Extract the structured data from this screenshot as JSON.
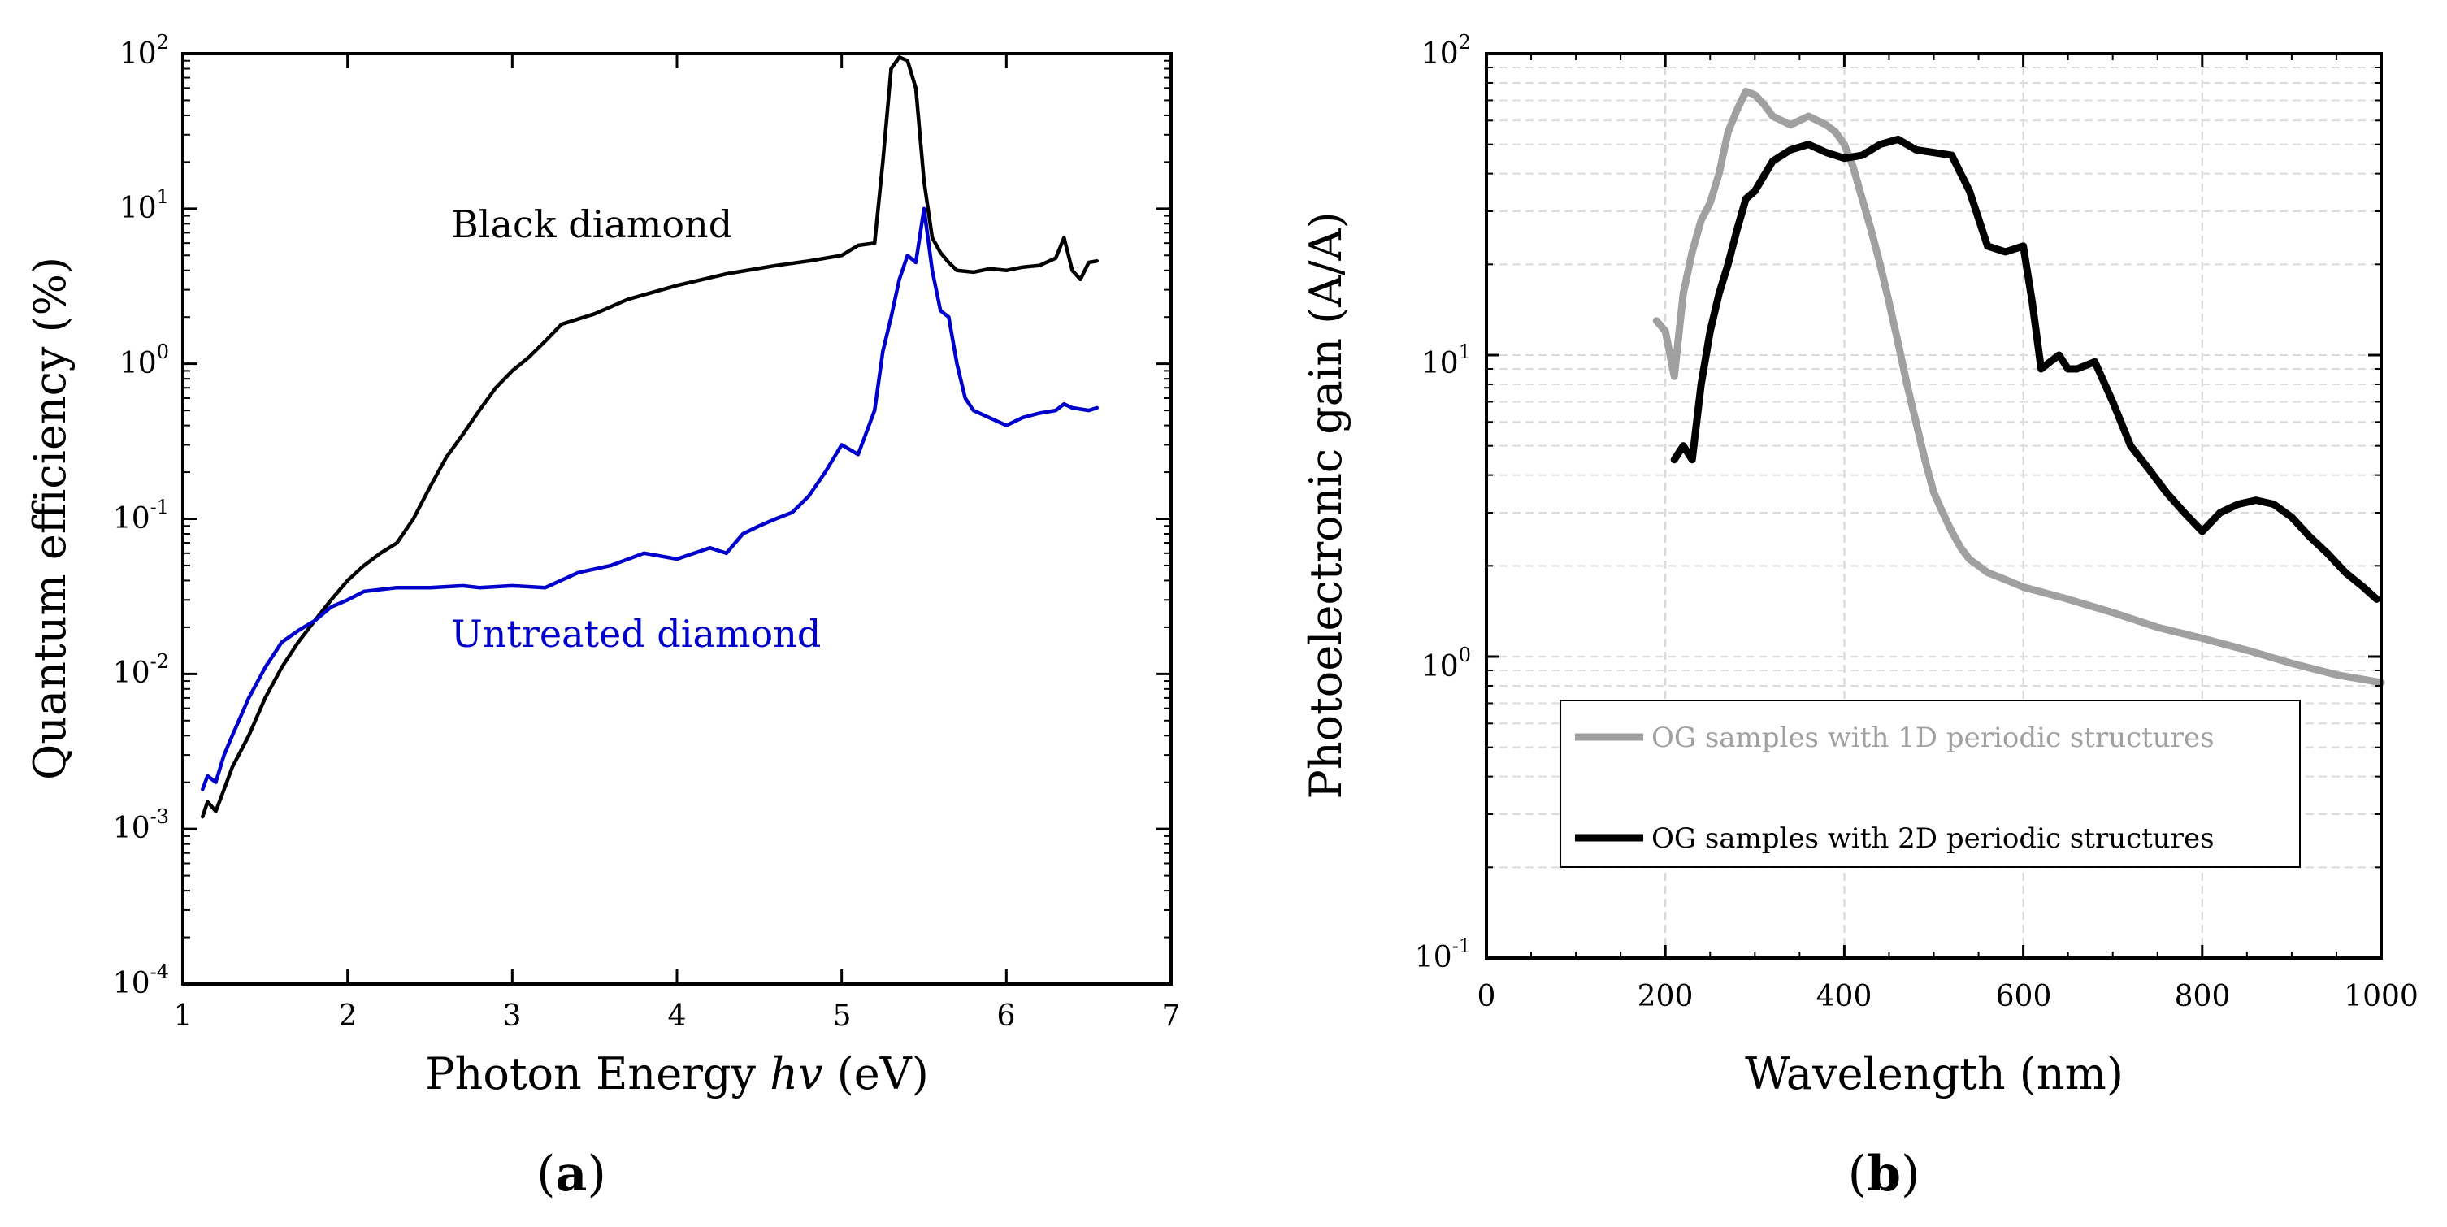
{
  "chart_data": [
    {
      "type": "line",
      "panel_label": "a",
      "xlabel": "Photon Energy",
      "xlabel_italic": "hv",
      "xlabel_unit": "(eV)",
      "ylabel": "Quantum efficiency (%)",
      "yscale": "log",
      "xlim": [
        1,
        7
      ],
      "ylim": [
        0.0001,
        100
      ],
      "xticks": [
        "1",
        "2",
        "3",
        "4",
        "5",
        "6",
        "7"
      ],
      "yticks": [
        {
          "base": "10",
          "exp": "2"
        },
        {
          "base": "10",
          "exp": "1"
        },
        {
          "base": "10",
          "exp": "0"
        },
        {
          "base": "10",
          "exp": "-1"
        },
        {
          "base": "10",
          "exp": "-2"
        },
        {
          "base": "10",
          "exp": "-3"
        },
        {
          "base": "10",
          "exp": "-4"
        }
      ],
      "series": [
        {
          "name": "Black diamond",
          "color": "#000000",
          "x": [
            1.12,
            1.15,
            1.2,
            1.25,
            1.3,
            1.4,
            1.5,
            1.6,
            1.7,
            1.8,
            1.9,
            2.0,
            2.1,
            2.2,
            2.3,
            2.4,
            2.5,
            2.6,
            2.7,
            2.8,
            2.9,
            3.0,
            3.1,
            3.2,
            3.3,
            3.5,
            3.7,
            4.0,
            4.3,
            4.6,
            4.8,
            5.0,
            5.1,
            5.2,
            5.25,
            5.3,
            5.35,
            5.4,
            5.45,
            5.5,
            5.55,
            5.6,
            5.65,
            5.7,
            5.8,
            5.9,
            6.0,
            6.1,
            6.2,
            6.3,
            6.35,
            6.4,
            6.45,
            6.5,
            6.55
          ],
          "y": [
            0.0012,
            0.0015,
            0.0013,
            0.0018,
            0.0025,
            0.004,
            0.007,
            0.011,
            0.016,
            0.022,
            0.03,
            0.04,
            0.05,
            0.06,
            0.07,
            0.1,
            0.16,
            0.25,
            0.35,
            0.5,
            0.7,
            0.9,
            1.1,
            1.4,
            1.8,
            2.1,
            2.6,
            3.2,
            3.8,
            4.3,
            4.6,
            5.0,
            5.8,
            6.0,
            20,
            80,
            95,
            90,
            60,
            15,
            6.5,
            5.2,
            4.5,
            4.0,
            3.9,
            4.1,
            4.0,
            4.2,
            4.3,
            4.8,
            6.5,
            4.0,
            3.5,
            4.5,
            4.6
          ]
        },
        {
          "name": "Untreated diamond",
          "color": "#0000cc",
          "x": [
            1.12,
            1.15,
            1.2,
            1.25,
            1.3,
            1.4,
            1.5,
            1.6,
            1.7,
            1.8,
            1.9,
            2.0,
            2.1,
            2.2,
            2.3,
            2.5,
            2.7,
            2.8,
            3.0,
            3.2,
            3.4,
            3.6,
            3.8,
            4.0,
            4.2,
            4.3,
            4.4,
            4.5,
            4.6,
            4.7,
            4.8,
            4.9,
            5.0,
            5.1,
            5.2,
            5.25,
            5.3,
            5.35,
            5.4,
            5.45,
            5.5,
            5.55,
            5.6,
            5.65,
            5.7,
            5.75,
            5.8,
            6.0,
            6.1,
            6.2,
            6.3,
            6.35,
            6.4,
            6.5,
            6.55
          ],
          "y": [
            0.0018,
            0.0022,
            0.002,
            0.003,
            0.004,
            0.007,
            0.011,
            0.016,
            0.019,
            0.022,
            0.027,
            0.03,
            0.034,
            0.035,
            0.036,
            0.036,
            0.037,
            0.036,
            0.037,
            0.036,
            0.045,
            0.05,
            0.06,
            0.055,
            0.065,
            0.06,
            0.08,
            0.09,
            0.1,
            0.11,
            0.14,
            0.2,
            0.3,
            0.26,
            0.5,
            1.2,
            2.0,
            3.5,
            5.0,
            4.5,
            10,
            4.0,
            2.2,
            2.0,
            1.0,
            0.6,
            0.5,
            0.4,
            0.45,
            0.48,
            0.5,
            0.55,
            0.52,
            0.5,
            0.52
          ]
        }
      ],
      "annotations": [
        "Black diamond",
        "Untreated diamond"
      ]
    },
    {
      "type": "line",
      "panel_label": "b",
      "xlabel": "Wavelength (nm)",
      "ylabel": "Photoelectronic gain (A/A)",
      "yscale": "log",
      "xlim": [
        0,
        1000
      ],
      "ylim": [
        0.1,
        100
      ],
      "xticks": [
        "0",
        "200",
        "400",
        "600",
        "800",
        "1000"
      ],
      "yticks": [
        {
          "base": "10",
          "exp": "2"
        },
        {
          "base": "10",
          "exp": "1"
        },
        {
          "base": "10",
          "exp": "0"
        },
        {
          "base": "10",
          "exp": "-1"
        }
      ],
      "grid": true,
      "legend": "bottom-left",
      "series": [
        {
          "name": "OG samples with 1D periodic structures",
          "color": "#a0a0a0",
          "x": [
            190,
            200,
            210,
            220,
            230,
            240,
            250,
            260,
            270,
            280,
            290,
            300,
            310,
            320,
            330,
            340,
            350,
            360,
            370,
            380,
            390,
            400,
            410,
            420,
            430,
            440,
            450,
            460,
            470,
            480,
            490,
            500,
            510,
            520,
            530,
            540,
            550,
            560,
            580,
            600,
            650,
            700,
            750,
            800,
            850,
            900,
            950,
            1000
          ],
          "y": [
            13,
            12,
            8.5,
            16,
            22,
            28,
            32,
            40,
            55,
            65,
            75,
            73,
            68,
            62,
            60,
            58,
            60,
            62,
            60,
            58,
            55,
            50,
            42,
            33,
            26,
            20,
            15,
            11,
            8,
            6,
            4.5,
            3.5,
            3.0,
            2.6,
            2.3,
            2.1,
            2.0,
            1.9,
            1.8,
            1.7,
            1.55,
            1.4,
            1.25,
            1.15,
            1.05,
            0.95,
            0.87,
            0.82
          ]
        },
        {
          "name": "OG samples with 2D periodic structures",
          "color": "#000000",
          "x": [
            210,
            220,
            230,
            240,
            250,
            260,
            270,
            280,
            290,
            300,
            320,
            340,
            360,
            380,
            400,
            420,
            440,
            460,
            480,
            500,
            520,
            540,
            560,
            580,
            600,
            610,
            620,
            630,
            640,
            650,
            660,
            680,
            700,
            720,
            740,
            760,
            780,
            800,
            820,
            840,
            860,
            880,
            900,
            920,
            940,
            960,
            980,
            995
          ],
          "y": [
            4.5,
            5.0,
            4.5,
            8,
            12,
            16,
            20,
            26,
            33,
            35,
            44,
            48,
            50,
            47,
            45,
            46,
            50,
            52,
            48,
            47,
            46,
            35,
            23,
            22,
            23,
            15,
            9,
            9.5,
            10,
            9,
            9,
            9.5,
            7,
            5,
            4.2,
            3.5,
            3.0,
            2.6,
            3.0,
            3.2,
            3.3,
            3.2,
            2.9,
            2.5,
            2.2,
            1.9,
            1.7,
            1.55
          ]
        }
      ]
    }
  ]
}
